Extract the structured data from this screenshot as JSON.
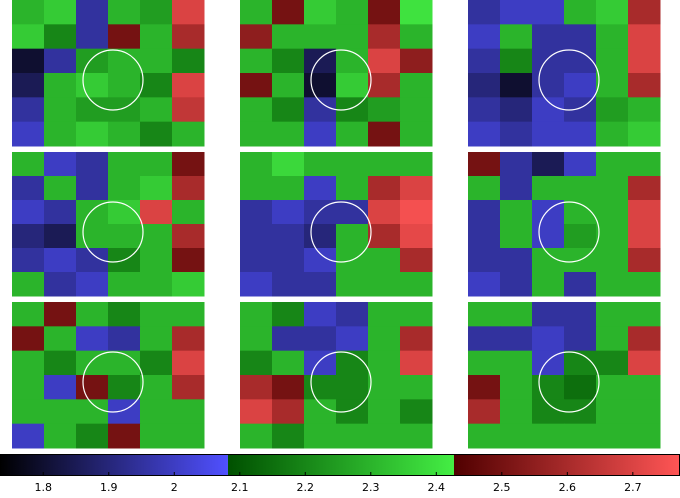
{
  "chart_data": {
    "type": "heatmap",
    "panels": [
      {
        "values": [
          [
            2.3,
            2.35,
            1.95,
            2.3,
            2.25,
            2.7
          ],
          [
            2.35,
            2.2,
            1.95,
            2.5,
            2.3,
            2.6
          ],
          [
            1.8,
            1.95,
            2.25,
            2.3,
            2.3,
            2.2
          ],
          [
            1.85,
            2.3,
            2.35,
            2.3,
            2.2,
            2.7
          ],
          [
            1.95,
            2.3,
            2.25,
            2.25,
            2.3,
            2.65
          ],
          [
            2.0,
            2.3,
            2.35,
            2.3,
            2.2,
            2.3
          ]
        ]
      },
      {
        "values": [
          [
            2.3,
            2.5,
            2.35,
            2.3,
            2.5,
            2.4
          ],
          [
            2.55,
            2.3,
            2.3,
            2.3,
            2.6,
            2.3
          ],
          [
            2.3,
            2.2,
            1.85,
            2.3,
            2.7,
            2.55
          ],
          [
            2.5,
            2.3,
            1.8,
            2.35,
            2.6,
            2.3
          ],
          [
            2.3,
            2.2,
            1.95,
            2.2,
            2.25,
            2.3
          ],
          [
            2.3,
            2.3,
            2.0,
            2.3,
            2.5,
            2.3
          ]
        ]
      },
      {
        "values": [
          [
            1.95,
            2.0,
            2.0,
            2.3,
            2.35,
            2.6
          ],
          [
            2.0,
            2.3,
            1.95,
            1.95,
            2.3,
            2.7
          ],
          [
            1.95,
            2.2,
            1.95,
            1.95,
            2.3,
            2.7
          ],
          [
            1.9,
            1.8,
            1.95,
            2.0,
            2.3,
            2.6
          ],
          [
            1.95,
            1.9,
            2.0,
            1.95,
            2.25,
            2.3
          ],
          [
            2.0,
            1.95,
            2.0,
            2.0,
            2.3,
            2.35
          ]
        ]
      },
      {
        "values": [
          [
            2.3,
            2.0,
            1.95,
            2.3,
            2.3,
            2.5
          ],
          [
            1.95,
            2.3,
            1.95,
            2.3,
            2.35,
            2.6
          ],
          [
            2.0,
            1.95,
            2.3,
            2.35,
            2.7,
            2.3
          ],
          [
            1.9,
            1.85,
            2.3,
            2.3,
            2.3,
            2.6
          ],
          [
            1.95,
            2.0,
            1.95,
            2.2,
            2.3,
            2.5
          ],
          [
            2.3,
            1.95,
            2.0,
            2.3,
            2.3,
            2.35
          ]
        ]
      },
      {
        "values": [
          [
            2.3,
            2.38,
            2.3,
            2.3,
            2.3,
            2.3
          ],
          [
            2.3,
            2.3,
            2.0,
            2.3,
            2.6,
            2.7
          ],
          [
            1.95,
            2.0,
            1.95,
            1.95,
            2.7,
            2.75
          ],
          [
            1.95,
            1.95,
            1.9,
            2.3,
            2.6,
            2.72
          ],
          [
            1.95,
            1.95,
            2.0,
            2.3,
            2.3,
            2.6
          ],
          [
            2.0,
            1.95,
            1.95,
            2.3,
            2.3,
            2.3
          ]
        ]
      },
      {
        "values": [
          [
            2.5,
            1.95,
            1.85,
            2.0,
            2.3,
            2.3
          ],
          [
            2.3,
            1.95,
            2.3,
            2.3,
            2.3,
            2.6
          ],
          [
            1.95,
            2.3,
            2.0,
            2.3,
            2.3,
            2.7
          ],
          [
            1.95,
            2.3,
            2.0,
            2.25,
            2.3,
            2.7
          ],
          [
            1.95,
            1.95,
            2.3,
            2.3,
            2.3,
            2.6
          ],
          [
            2.0,
            1.95,
            2.3,
            1.95,
            2.3,
            2.3
          ]
        ]
      },
      {
        "values": [
          [
            2.3,
            2.5,
            2.3,
            2.2,
            2.3,
            2.3
          ],
          [
            2.5,
            2.3,
            2.0,
            1.95,
            2.3,
            2.6
          ],
          [
            2.3,
            2.2,
            2.3,
            2.3,
            2.2,
            2.7
          ],
          [
            2.3,
            2.0,
            2.5,
            2.2,
            2.3,
            2.6
          ],
          [
            2.3,
            2.3,
            2.3,
            2.0,
            2.3,
            2.3
          ],
          [
            2.0,
            2.3,
            2.2,
            2.5,
            2.3,
            2.3
          ]
        ]
      },
      {
        "values": [
          [
            2.3,
            2.2,
            2.0,
            1.95,
            2.3,
            2.3
          ],
          [
            2.3,
            1.95,
            1.95,
            2.0,
            2.3,
            2.6
          ],
          [
            2.2,
            2.3,
            2.0,
            2.2,
            2.3,
            2.7
          ],
          [
            2.6,
            2.5,
            2.2,
            2.2,
            2.3,
            2.3
          ],
          [
            2.7,
            2.6,
            2.3,
            2.2,
            2.3,
            2.2
          ],
          [
            2.3,
            2.2,
            2.3,
            2.3,
            2.3,
            2.3
          ]
        ]
      },
      {
        "values": [
          [
            2.3,
            2.3,
            1.95,
            1.95,
            2.3,
            2.3
          ],
          [
            1.95,
            1.95,
            2.0,
            1.95,
            2.3,
            2.6
          ],
          [
            2.3,
            2.3,
            2.0,
            2.2,
            2.2,
            2.7
          ],
          [
            2.5,
            2.3,
            2.2,
            2.15,
            2.3,
            2.3
          ],
          [
            2.6,
            2.3,
            2.2,
            2.2,
            2.3,
            2.3
          ],
          [
            2.3,
            2.3,
            2.3,
            2.3,
            2.3,
            2.3
          ]
        ]
      }
    ],
    "colorbar": {
      "clim": [
        1.734,
        2.772
      ],
      "boundaries": [
        2.082,
        2.427
      ],
      "colors": [
        [
          "#000000",
          "#5050ff"
        ],
        [
          "#005000",
          "#44ee44"
        ],
        [
          "#500000",
          "#ff5555"
        ]
      ],
      "ticks": [
        1.8,
        1.9,
        2,
        2.1,
        2.2,
        2.3,
        2.4,
        2.5,
        2.6,
        2.7
      ]
    }
  }
}
